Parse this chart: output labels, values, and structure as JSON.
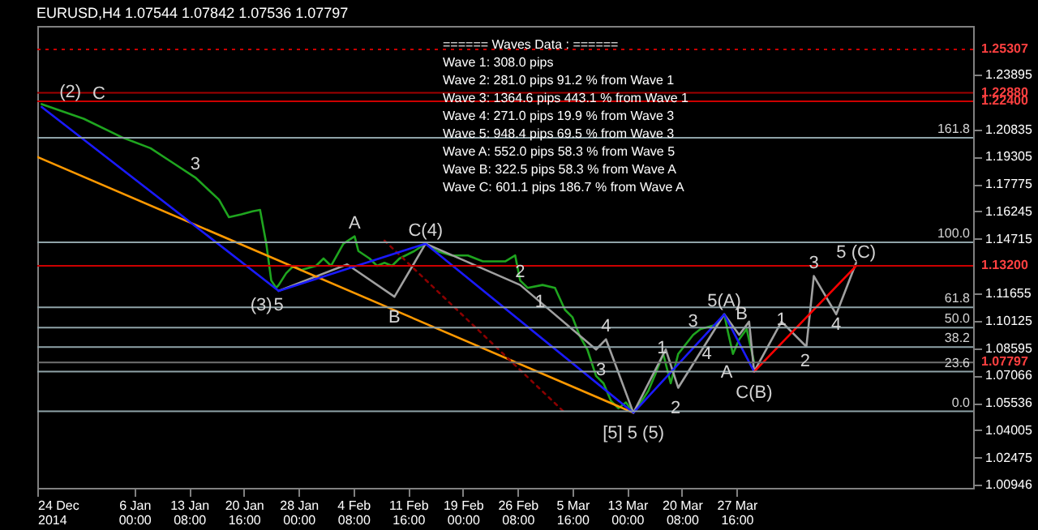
{
  "chart_data": {
    "type": "line",
    "title": "EURUSD,H4  1.07544 1.07842 1.07536 1.07797",
    "xlim": [
      "2014-12-24",
      "2015-04-28T08:00"
    ],
    "xticks": [
      {
        "value": "2014-12-24",
        "label": "24 Dec 2014"
      },
      {
        "value": "2015-01-06T00:00",
        "label": "6 Jan 00:00"
      },
      {
        "value": "2015-01-13T08:00",
        "label": "13 Jan 08:00"
      },
      {
        "value": "2015-01-20T16:00",
        "label": "20 Jan 16:00"
      },
      {
        "value": "2015-01-28T00:00",
        "label": "28 Jan 00:00"
      },
      {
        "value": "2015-02-04T08:00",
        "label": "4 Feb 08:00"
      },
      {
        "value": "2015-02-11T16:00",
        "label": "11 Feb 16:00"
      },
      {
        "value": "2015-02-19T00:00",
        "label": "19 Feb 00:00"
      },
      {
        "value": "2015-02-26T08:00",
        "label": "26 Feb 08:00"
      },
      {
        "value": "2015-03-05T16:00",
        "label": "5 Mar 16:00"
      },
      {
        "value": "2015-03-13T00:00",
        "label": "13 Mar 00:00"
      },
      {
        "value": "2015-03-20T08:00",
        "label": "20 Mar 08:00"
      },
      {
        "value": "2015-03-27T16:00",
        "label": "27 Mar 16:00"
      }
    ],
    "ylim": [
      1.0078,
      1.2662
    ],
    "yticks": [
      1.00946,
      1.02475,
      1.04005,
      1.05536,
      1.07066,
      1.08595,
      1.10125,
      1.11655,
      1.14715,
      1.16245,
      1.17775,
      1.19305,
      1.20835,
      1.23895
    ],
    "series": [
      {
        "color": "#1fa51f",
        "x": [
          "2014-12-24T14:00",
          "2014-12-30T05:00",
          "2015-01-04T12:00",
          "2015-01-08T04:00",
          "2015-01-11T04:00",
          "2015-01-14T04:00",
          "2015-01-17T08:00",
          "2015-01-18T16:00",
          "2015-01-20T08:00",
          "2015-01-21T20:00",
          "2015-01-22T20:00",
          "2015-01-23T16:00",
          "2015-01-24T08:00",
          "2015-01-25T00:00",
          "2015-01-25T08:00",
          "2015-01-26T08:00",
          "2015-01-27T08:00",
          "2015-01-28T08:00",
          "2015-01-30T08:00",
          "2015-01-31T08:00",
          "2015-02-01T08:00",
          "2015-02-03T00:00",
          "2015-02-04T12:00",
          "2015-02-05T00:00",
          "2015-02-06T12:00",
          "2015-02-07T12:00",
          "2015-02-08T12:00",
          "2015-02-09T12:00",
          "2015-02-10T12:00",
          "2015-02-12T12:00",
          "2015-02-14T00:00",
          "2015-02-15T12:00",
          "2015-02-17T12:00",
          "2015-02-19T16:00",
          "2015-02-21T16:00",
          "2015-02-24T16:00",
          "2015-02-26T00:00",
          "2015-02-26T16:00",
          "2015-02-27T16:00",
          "2015-03-01T16:00",
          "2015-03-03T08:00",
          "2015-03-04T16:00",
          "2015-03-05T16:00",
          "2015-03-06T16:00",
          "2015-03-07T16:00",
          "2015-03-08T20:00",
          "2015-03-09T20:00",
          "2015-03-10T20:00",
          "2015-03-11T20:00",
          "2015-03-12T20:00",
          "2015-03-13T20:00",
          "2015-03-14T20:00",
          "2015-03-15T20:00",
          "2015-03-16T20:00",
          "2015-03-17T20:00",
          "2015-03-18T20:00",
          "2015-03-19T20:00",
          "2015-03-21T20:00",
          "2015-03-22T20:00",
          "2015-03-25T00:00",
          "2015-03-26T00:00",
          "2015-03-26T12:00",
          "2015-03-27T04:00",
          "2015-03-28T00:00",
          "2015-03-29T00:00",
          "2015-03-30T00:00"
        ],
        "values": [
          1.2225,
          1.2143,
          1.2036,
          1.1978,
          1.1896,
          1.1814,
          1.169,
          1.1592,
          1.1608,
          1.1625,
          1.1633,
          1.1444,
          1.1238,
          1.1197,
          1.1213,
          1.1279,
          1.132,
          1.1296,
          1.132,
          1.1361,
          1.132,
          1.1444,
          1.1485,
          1.1403,
          1.1361,
          1.132,
          1.1337,
          1.132,
          1.1361,
          1.1403,
          1.1444,
          1.1403,
          1.1378,
          1.1378,
          1.1345,
          1.1345,
          1.1378,
          1.1238,
          1.1197,
          1.1213,
          1.1197,
          1.1074,
          1.1033,
          1.0926,
          1.0852,
          1.0704,
          1.0663,
          1.0564,
          1.0523,
          1.0556,
          1.0498,
          1.0556,
          1.0621,
          1.072,
          1.0827,
          1.0663,
          1.0827,
          1.0934,
          1.0967,
          1.0992,
          1.1049,
          1.095,
          1.0827,
          1.0909,
          1.0967,
          1.078
        ]
      },
      {
        "color": "#a0a0a0",
        "x": [
          "2015-01-25T08:00",
          "2015-02-03T12:00",
          "2015-02-09T20:00",
          "2015-02-14T00:00",
          "2015-02-26T16:00",
          "2015-03-08T20:00",
          "2015-03-10T04:00",
          "2015-03-13T20:00",
          "2015-03-18T04:00",
          "2015-03-19T20:00",
          "2015-03-26T00:00",
          "2015-03-28T00:00",
          "2015-03-29T08:00",
          "2015-03-30T00:00",
          "2015-04-02T16:00",
          "2015-04-06T00:00",
          "2015-04-07T00:00",
          "2015-04-10T00:00",
          "2015-04-12T16:00"
        ],
        "values": [
          1.118,
          1.1328,
          1.1147,
          1.1444,
          1.1213,
          1.0852,
          1.0909,
          1.0498,
          1.0852,
          1.0638,
          1.1049,
          1.0934,
          1.1008,
          1.0728,
          1.1008,
          1.0868,
          1.1263,
          1.1049,
          1.1337
        ]
      },
      {
        "color": "#ff9900",
        "x": [
          "2014-12-24T00:00",
          "2015-03-13T20:00"
        ],
        "values": [
          1.1929,
          1.0498
        ]
      },
      {
        "color": "#8b0000",
        "line_style": "dotted",
        "x": [
          "2015-02-08T12:00",
          "2015-03-04T16:00"
        ],
        "values": [
          1.1461,
          1.0498
        ]
      },
      {
        "color": "#1a1aff",
        "x": [
          "2014-12-24T14:00",
          "2015-01-25T08:00",
          "2015-02-14T00:00",
          "2015-03-13T20:00",
          "2015-03-26T00:00",
          "2015-03-30T00:00"
        ],
        "values": [
          1.2209,
          1.118,
          1.1444,
          1.0498,
          1.1049,
          1.0728
        ]
      },
      {
        "color": "#ff0000",
        "x": [
          "2015-03-30T00:00",
          "2015-04-12T16:00"
        ],
        "values": [
          1.0728,
          1.132
        ]
      }
    ],
    "ref_lines": [
      {
        "axis": "y",
        "value": 1.25307,
        "label": "1.25307",
        "color": "#cc0000",
        "line_style": "dotted"
      },
      {
        "axis": "y",
        "value": 1.2288,
        "label": "1.22880",
        "color": "#a00000"
      },
      {
        "axis": "y",
        "value": 1.224,
        "label": "1.22400",
        "color": "#cc0000"
      },
      {
        "axis": "y",
        "value": 1.2036,
        "color": "#8fa3a8"
      },
      {
        "axis": "y",
        "value": 1.1452,
        "color": "#8fa3a8"
      },
      {
        "axis": "y",
        "value": 1.132,
        "label": "1.13200",
        "color": "#cc0000"
      },
      {
        "axis": "y",
        "value": 1.1088,
        "color": "#8fa3a8"
      },
      {
        "axis": "y",
        "value": 1.0975,
        "color": "#8fa3a8"
      },
      {
        "axis": "y",
        "value": 1.0866,
        "color": "#8fa3a8"
      },
      {
        "axis": "y",
        "value": 1.07797,
        "label": "1.07797",
        "color": "#707070"
      },
      {
        "axis": "y",
        "value": 1.0728,
        "color": "#8fa3a8"
      },
      {
        "axis": "y",
        "value": 1.0506,
        "color": "#8fa3a8"
      }
    ],
    "annotations": [
      "====== Waves Data : ======",
      "Wave 1: 308.0 pips",
      "Wave 2: 281.0 pips 91.2 % from Wave 1",
      "Wave 3: 1364.6 pips 443.1 % from Wave 1",
      "Wave 4: 271.0 pips 19.9 % from Wave 3",
      "Wave 5: 948.4 pips 69.5 % from Wave 3",
      "Wave A: 552.0 pips 58.3 % from Wave 5",
      "Wave B: 322.5 pips 58.3 % from Wave A",
      "Wave C: 601.1 pips 186.7 % from Wave A",
      {
        "text": "161.8",
        "x": "2015-04-28T08:00",
        "y": 1.2036
      },
      {
        "text": "100.0",
        "x": "2015-04-28T08:00",
        "y": 1.1452
      },
      {
        "text": "61.8",
        "x": "2015-04-28T08:00",
        "y": 1.1088
      },
      {
        "text": "50.0",
        "x": "2015-04-28T08:00",
        "y": 1.0975
      },
      {
        "text": "38.2",
        "x": "2015-04-28T08:00",
        "y": 1.0866
      },
      {
        "text": "23.6",
        "x": "2015-04-28T08:00",
        "y": 1.0728
      },
      {
        "text": "0.0",
        "x": "2015-04-28T08:00",
        "y": 1.0506
      },
      {
        "text": "(2)",
        "x": "2014-12-28T10:00",
        "y": 1.2291
      },
      {
        "text": "C",
        "x": "2015-01-01T06:00",
        "y": 1.2283
      },
      {
        "text": "3",
        "x": "2015-01-14T04:00",
        "y": 1.1814
      },
      {
        "text": "(3)",
        "x": "2015-01-23T00:00",
        "y": 1.1098
      },
      {
        "text": "5",
        "x": "2015-01-25T08:00",
        "y": 1.1098
      },
      {
        "text": "A",
        "x": "2015-02-04T12:00",
        "y": 1.1485
      },
      {
        "text": "B",
        "x": "2015-02-09T20:00",
        "y": 1.1147
      },
      {
        "text": "C(4)",
        "x": "2015-02-14T00:00",
        "y": 1.1444
      },
      {
        "text": "2",
        "x": "2015-02-26T16:00",
        "y": 1.1213
      },
      {
        "text": "1",
        "x": "2015-03-01T08:00",
        "y": 1.1114
      },
      {
        "text": "4",
        "x": "2015-03-10T04:00",
        "y": 1.0909
      },
      {
        "text": "3",
        "x": "2015-03-09T12:00",
        "y": 1.0736
      },
      {
        "text": "[5] 5 (5)",
        "x": "2015-03-13T20:00",
        "y": 1.0498
      },
      {
        "text": "2",
        "x": "2015-03-19T12:00",
        "y": 1.0523
      },
      {
        "text": "1",
        "x": "2015-03-17T16:00",
        "y": 1.086
      },
      {
        "text": "3",
        "x": "2015-03-21T20:00",
        "y": 1.1008
      },
      {
        "text": "4",
        "x": "2015-03-23T16:00",
        "y": 1.0827
      },
      {
        "text": "5(A)",
        "x": "2015-03-26T00:00",
        "y": 1.1049
      },
      {
        "text": "B",
        "x": "2015-03-28T08:00",
        "y": 1.105
      },
      {
        "text": "A",
        "x": "2015-03-26T08:00",
        "y": 1.072
      },
      {
        "text": "C(B)",
        "x": "2015-03-30T00:00",
        "y": 1.0728
      },
      {
        "text": "1",
        "x": "2015-04-02T16:00",
        "y": 1.1017
      },
      {
        "text": "2",
        "x": "2015-04-05T20:00",
        "y": 1.0786
      },
      {
        "text": "3",
        "x": "2015-04-07T00:00",
        "y": 1.1263
      },
      {
        "text": "4",
        "x": "2015-04-10T00:00",
        "y": 1.0988
      },
      {
        "text": "5 (C)",
        "x": "2015-04-12T16:00",
        "y": 1.132
      }
    ]
  }
}
